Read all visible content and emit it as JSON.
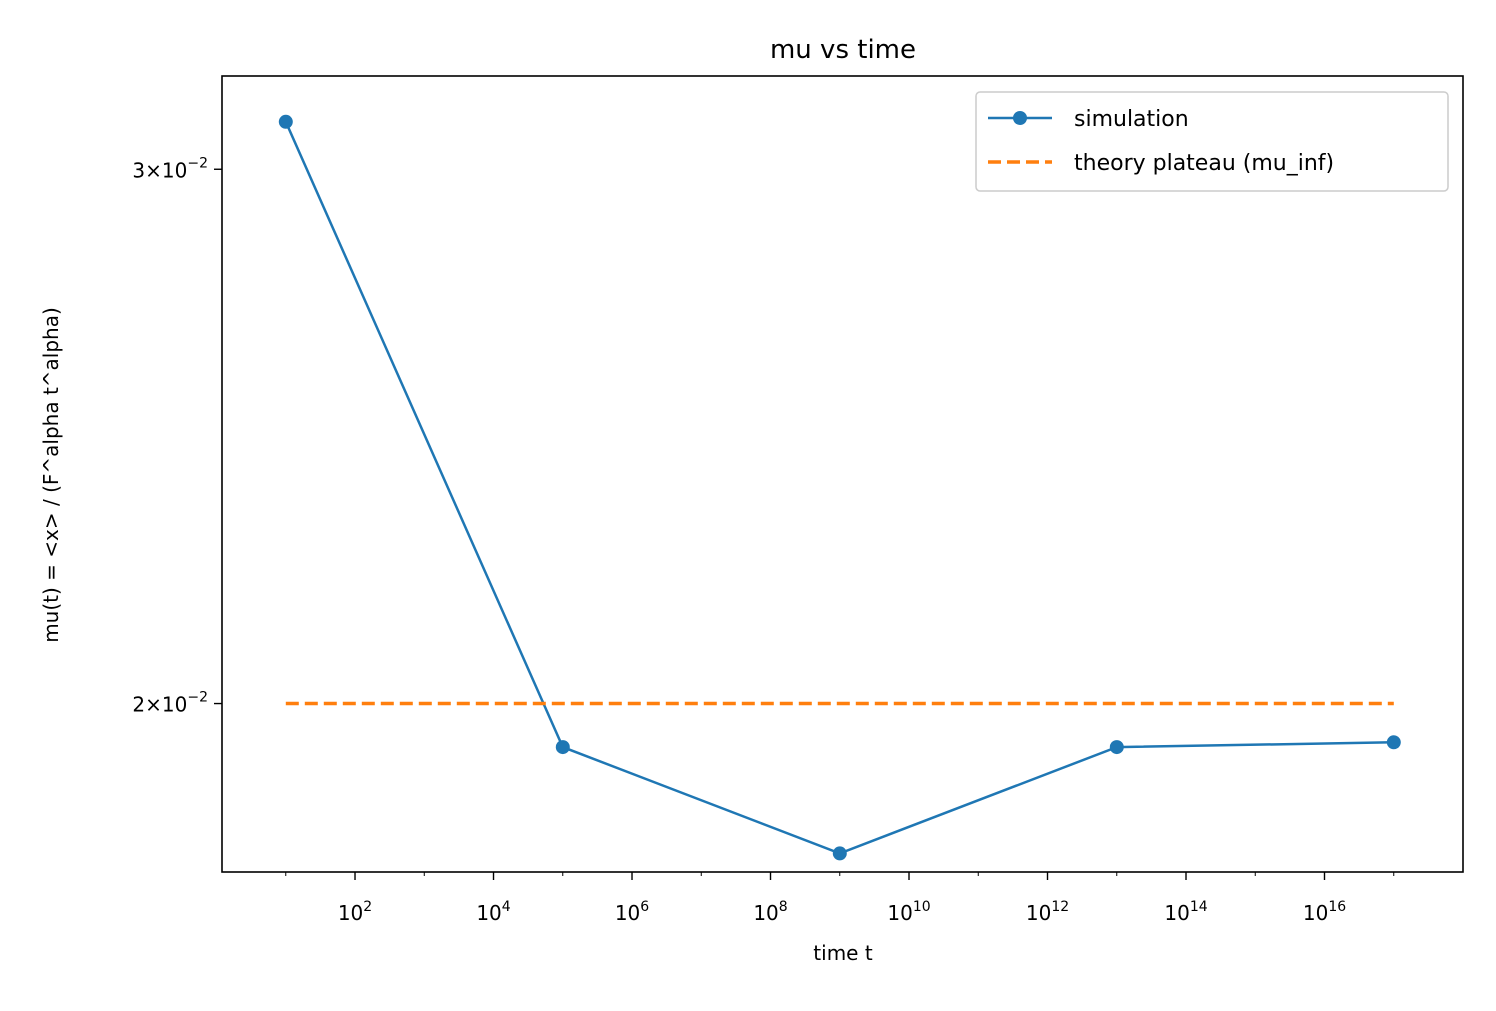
{
  "colors": {
    "simulation": "#1f77b4",
    "theory": "#ff7f0e"
  },
  "chart_data": {
    "type": "line",
    "title": "mu vs time",
    "xlabel": "time t",
    "ylabel": "mu(t) = <x> / (F^alpha t^alpha)",
    "xscale": "log",
    "yscale": "log",
    "xlim": [
      1.2,
      1e+18
    ],
    "ylim": [
      0.0176,
      0.0322
    ],
    "grid": false,
    "legend_position": "top-right",
    "x_ticks": [
      {
        "base": "10",
        "exp": "2",
        "value": 100
      },
      {
        "base": "10",
        "exp": "4",
        "value": 10000
      },
      {
        "base": "10",
        "exp": "6",
        "value": 1000000
      },
      {
        "base": "10",
        "exp": "8",
        "value": 100000000
      },
      {
        "base": "10",
        "exp": "10",
        "value": 10000000000
      },
      {
        "base": "10",
        "exp": "12",
        "value": 1000000000000
      },
      {
        "base": "10",
        "exp": "14",
        "value": 100000000000000
      },
      {
        "base": "10",
        "exp": "16",
        "value": 10000000000000000
      }
    ],
    "y_ticks": [
      {
        "mantissa": "3",
        "base": "10",
        "exp": "−2",
        "value": 0.03
      },
      {
        "mantissa": "2",
        "base": "10",
        "exp": "−2",
        "value": 0.02
      }
    ],
    "series": [
      {
        "name": "simulation",
        "style": "line-marker",
        "x": [
          10,
          100000,
          1000000000,
          10000000000000,
          100000000000000000
        ],
        "y": [
          0.0311,
          0.01935,
          0.01785,
          0.01935,
          0.01942
        ]
      },
      {
        "name": "theory plateau (mu_inf)",
        "style": "dashed",
        "x": [
          10,
          100000000000000000
        ],
        "y": [
          0.02,
          0.02
        ]
      }
    ]
  }
}
